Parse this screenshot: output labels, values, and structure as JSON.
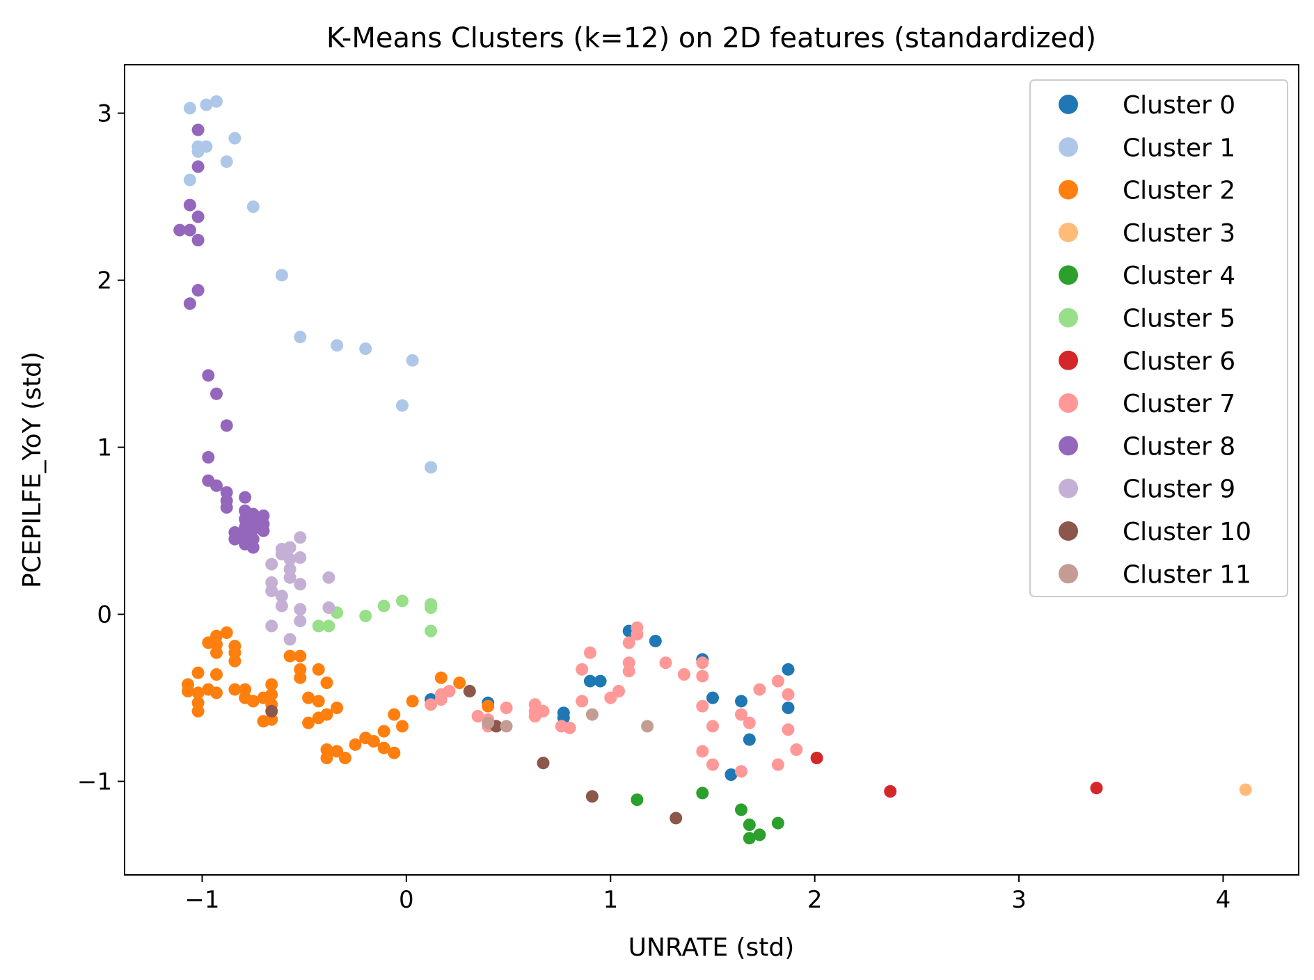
{
  "chart_data": {
    "type": "scatter",
    "title": "K-Means Clusters (k=12) on 2D features (standardized)",
    "xlabel": "UNRATE (std)",
    "ylabel": "PCEPILFE_YoY (std)",
    "xlim": [
      -1.38,
      4.37
    ],
    "ylim": [
      -1.56,
      3.29
    ],
    "xticks": [
      -1,
      0,
      1,
      2,
      3,
      4
    ],
    "xtick_labels": [
      "−1",
      "0",
      "1",
      "2",
      "3",
      "4"
    ],
    "yticks": [
      -1,
      0,
      1,
      2,
      3
    ],
    "ytick_labels": [
      "−1",
      "0",
      "1",
      "2",
      "3"
    ],
    "grid": false,
    "legend_position": "top-right",
    "series": [
      {
        "name": "Cluster 0",
        "color": "#1f77b4",
        "points": [
          [
            1.09,
            -0.1
          ],
          [
            1.22,
            -0.16
          ],
          [
            1.45,
            -0.27
          ],
          [
            1.5,
            -0.5
          ],
          [
            1.64,
            -0.52
          ],
          [
            1.87,
            -0.33
          ],
          [
            1.87,
            -0.56
          ],
          [
            1.68,
            -0.75
          ],
          [
            1.59,
            -0.96
          ],
          [
            0.9,
            -0.4
          ],
          [
            0.95,
            -0.4
          ],
          [
            0.77,
            -0.59
          ],
          [
            0.77,
            -0.62
          ],
          [
            0.4,
            -0.53
          ],
          [
            0.12,
            -0.51
          ]
        ]
      },
      {
        "name": "Cluster 1",
        "color": "#aec7e8",
        "points": [
          [
            -1.06,
            3.03
          ],
          [
            -0.98,
            3.05
          ],
          [
            -0.93,
            3.07
          ],
          [
            -0.84,
            2.85
          ],
          [
            -1.02,
            2.8
          ],
          [
            -0.98,
            2.8
          ],
          [
            -1.02,
            2.77
          ],
          [
            -0.88,
            2.71
          ],
          [
            -1.06,
            2.6
          ],
          [
            -0.75,
            2.44
          ],
          [
            -0.61,
            2.03
          ],
          [
            -0.52,
            1.66
          ],
          [
            -0.34,
            1.61
          ],
          [
            -0.2,
            1.59
          ],
          [
            0.03,
            1.52
          ],
          [
            -0.02,
            1.25
          ],
          [
            0.12,
            0.88
          ]
        ]
      },
      {
        "name": "Cluster 2",
        "color": "#ff7f0e",
        "points": [
          [
            -1.07,
            -0.42
          ],
          [
            -1.07,
            -0.46
          ],
          [
            -1.02,
            -0.35
          ],
          [
            -1.02,
            -0.47
          ],
          [
            -1.02,
            -0.53
          ],
          [
            -1.02,
            -0.58
          ],
          [
            -0.97,
            -0.17
          ],
          [
            -0.97,
            -0.45
          ],
          [
            -0.93,
            -0.13
          ],
          [
            -0.93,
            -0.18
          ],
          [
            -0.93,
            -0.23
          ],
          [
            -0.93,
            -0.36
          ],
          [
            -0.93,
            -0.47
          ],
          [
            -0.88,
            -0.11
          ],
          [
            -0.84,
            -0.19
          ],
          [
            -0.84,
            -0.23
          ],
          [
            -0.84,
            -0.28
          ],
          [
            -0.84,
            -0.45
          ],
          [
            -0.79,
            -0.45
          ],
          [
            -0.79,
            -0.5
          ],
          [
            -0.75,
            -0.52
          ],
          [
            -0.7,
            -0.5
          ],
          [
            -0.7,
            -0.64
          ],
          [
            -0.66,
            -0.42
          ],
          [
            -0.66,
            -0.48
          ],
          [
            -0.66,
            -0.54
          ],
          [
            -0.66,
            -0.63
          ],
          [
            -0.57,
            -0.25
          ],
          [
            -0.52,
            -0.25
          ],
          [
            -0.52,
            -0.33
          ],
          [
            -0.52,
            -0.38
          ],
          [
            -0.48,
            -0.5
          ],
          [
            -0.48,
            -0.65
          ],
          [
            -0.43,
            -0.33
          ],
          [
            -0.43,
            -0.52
          ],
          [
            -0.43,
            -0.62
          ],
          [
            -0.39,
            -0.41
          ],
          [
            -0.39,
            -0.6
          ],
          [
            -0.39,
            -0.81
          ],
          [
            -0.39,
            -0.86
          ],
          [
            -0.34,
            -0.56
          ],
          [
            -0.34,
            -0.82
          ],
          [
            -0.3,
            -0.86
          ],
          [
            -0.25,
            -0.78
          ],
          [
            -0.2,
            -0.74
          ],
          [
            -0.16,
            -0.76
          ],
          [
            -0.11,
            -0.7
          ],
          [
            -0.11,
            -0.8
          ],
          [
            -0.06,
            -0.83
          ],
          [
            -0.06,
            -0.6
          ],
          [
            -0.02,
            -0.67
          ],
          [
            0.03,
            -0.52
          ],
          [
            0.17,
            -0.38
          ],
          [
            0.26,
            -0.41
          ],
          [
            0.4,
            -0.55
          ]
        ]
      },
      {
        "name": "Cluster 3",
        "color": "#ffbb78",
        "points": [
          [
            4.11,
            -1.05
          ]
        ]
      },
      {
        "name": "Cluster 4",
        "color": "#2ca02c",
        "points": [
          [
            1.13,
            -1.11
          ],
          [
            1.45,
            -1.07
          ],
          [
            1.64,
            -1.17
          ],
          [
            1.68,
            -1.26
          ],
          [
            1.82,
            -1.25
          ],
          [
            1.73,
            -1.32
          ],
          [
            1.68,
            -1.34
          ]
        ]
      },
      {
        "name": "Cluster 5",
        "color": "#98df8a",
        "points": [
          [
            -0.38,
            -0.07
          ],
          [
            -0.43,
            -0.07
          ],
          [
            -0.34,
            0.01
          ],
          [
            -0.2,
            -0.01
          ],
          [
            -0.11,
            0.05
          ],
          [
            -0.02,
            0.08
          ],
          [
            0.12,
            0.06
          ],
          [
            0.12,
            0.04
          ],
          [
            0.12,
            -0.1
          ]
        ]
      },
      {
        "name": "Cluster 6",
        "color": "#d62728",
        "points": [
          [
            2.01,
            -0.86
          ],
          [
            2.37,
            -1.06
          ],
          [
            3.38,
            -1.04
          ]
        ]
      },
      {
        "name": "Cluster 7",
        "color": "#ff9896",
        "points": [
          [
            1.13,
            -0.08
          ],
          [
            1.13,
            -0.12
          ],
          [
            1.09,
            -0.17
          ],
          [
            1.09,
            -0.29
          ],
          [
            1.09,
            -0.34
          ],
          [
            0.9,
            -0.23
          ],
          [
            0.86,
            -0.33
          ],
          [
            0.86,
            -0.52
          ],
          [
            1.04,
            -0.46
          ],
          [
            1.0,
            -0.5
          ],
          [
            1.27,
            -0.29
          ],
          [
            1.36,
            -0.36
          ],
          [
            1.45,
            -0.29
          ],
          [
            1.45,
            -0.37
          ],
          [
            1.45,
            -0.55
          ],
          [
            1.5,
            -0.67
          ],
          [
            1.64,
            -0.6
          ],
          [
            1.68,
            -0.65
          ],
          [
            1.73,
            -0.45
          ],
          [
            1.82,
            -0.4
          ],
          [
            1.87,
            -0.48
          ],
          [
            1.87,
            -0.69
          ],
          [
            1.91,
            -0.81
          ],
          [
            1.82,
            -0.9
          ],
          [
            1.64,
            -0.94
          ],
          [
            1.5,
            -0.9
          ],
          [
            1.45,
            -0.82
          ],
          [
            0.8,
            -0.68
          ],
          [
            0.76,
            -0.67
          ],
          [
            0.67,
            -0.58
          ],
          [
            0.63,
            -0.54
          ],
          [
            0.63,
            -0.58
          ],
          [
            0.63,
            -0.61
          ],
          [
            0.49,
            -0.56
          ],
          [
            0.4,
            -0.63
          ],
          [
            0.4,
            -0.67
          ],
          [
            0.35,
            -0.61
          ],
          [
            0.21,
            -0.46
          ],
          [
            0.17,
            -0.48
          ],
          [
            0.17,
            -0.51
          ],
          [
            0.12,
            -0.54
          ]
        ]
      },
      {
        "name": "Cluster 8",
        "color": "#9467bd",
        "points": [
          [
            -1.02,
            2.9
          ],
          [
            -1.02,
            2.68
          ],
          [
            -1.06,
            2.45
          ],
          [
            -1.02,
            2.38
          ],
          [
            -1.06,
            2.3
          ],
          [
            -1.11,
            2.3
          ],
          [
            -1.02,
            2.24
          ],
          [
            -1.02,
            1.94
          ],
          [
            -1.06,
            1.86
          ],
          [
            -0.97,
            1.43
          ],
          [
            -0.93,
            1.32
          ],
          [
            -0.88,
            1.13
          ],
          [
            -0.97,
            0.94
          ],
          [
            -0.97,
            0.8
          ],
          [
            -0.93,
            0.77
          ],
          [
            -0.88,
            0.73
          ],
          [
            -0.88,
            0.68
          ],
          [
            -0.88,
            0.64
          ],
          [
            -0.79,
            0.7
          ],
          [
            -0.79,
            0.62
          ],
          [
            -0.79,
            0.57
          ],
          [
            -0.79,
            0.52
          ],
          [
            -0.79,
            0.47
          ],
          [
            -0.79,
            0.42
          ],
          [
            -0.75,
            0.6
          ],
          [
            -0.75,
            0.56
          ],
          [
            -0.75,
            0.51
          ],
          [
            -0.75,
            0.45
          ],
          [
            -0.75,
            0.4
          ],
          [
            -0.84,
            0.49
          ],
          [
            -0.84,
            0.45
          ],
          [
            -0.7,
            0.59
          ],
          [
            -0.7,
            0.54
          ],
          [
            -0.7,
            0.5
          ]
        ]
      },
      {
        "name": "Cluster 9",
        "color": "#c5b0d5",
        "points": [
          [
            -0.61,
            0.39
          ],
          [
            -0.57,
            0.4
          ],
          [
            -0.61,
            0.36
          ],
          [
            -0.57,
            0.33
          ],
          [
            -0.52,
            0.46
          ],
          [
            -0.52,
            0.34
          ],
          [
            -0.66,
            0.3
          ],
          [
            -0.57,
            0.27
          ],
          [
            -0.57,
            0.22
          ],
          [
            -0.66,
            0.19
          ],
          [
            -0.52,
            0.18
          ],
          [
            -0.66,
            0.14
          ],
          [
            -0.61,
            0.11
          ],
          [
            -0.61,
            0.05
          ],
          [
            -0.52,
            0.03
          ],
          [
            -0.38,
            0.22
          ],
          [
            -0.38,
            0.04
          ],
          [
            -0.52,
            -0.04
          ],
          [
            -0.57,
            -0.15
          ],
          [
            -0.66,
            -0.07
          ]
        ]
      },
      {
        "name": "Cluster 10",
        "color": "#8c564b",
        "points": [
          [
            -0.66,
            -0.58
          ],
          [
            0.31,
            -0.46
          ],
          [
            0.44,
            -0.67
          ],
          [
            0.67,
            -0.89
          ],
          [
            0.91,
            -1.09
          ],
          [
            1.32,
            -1.22
          ]
        ]
      },
      {
        "name": "Cluster 11",
        "color": "#c49c94",
        "points": [
          [
            0.4,
            -0.65
          ],
          [
            0.49,
            -0.67
          ],
          [
            0.91,
            -0.6
          ],
          [
            1.18,
            -0.67
          ]
        ]
      }
    ]
  }
}
